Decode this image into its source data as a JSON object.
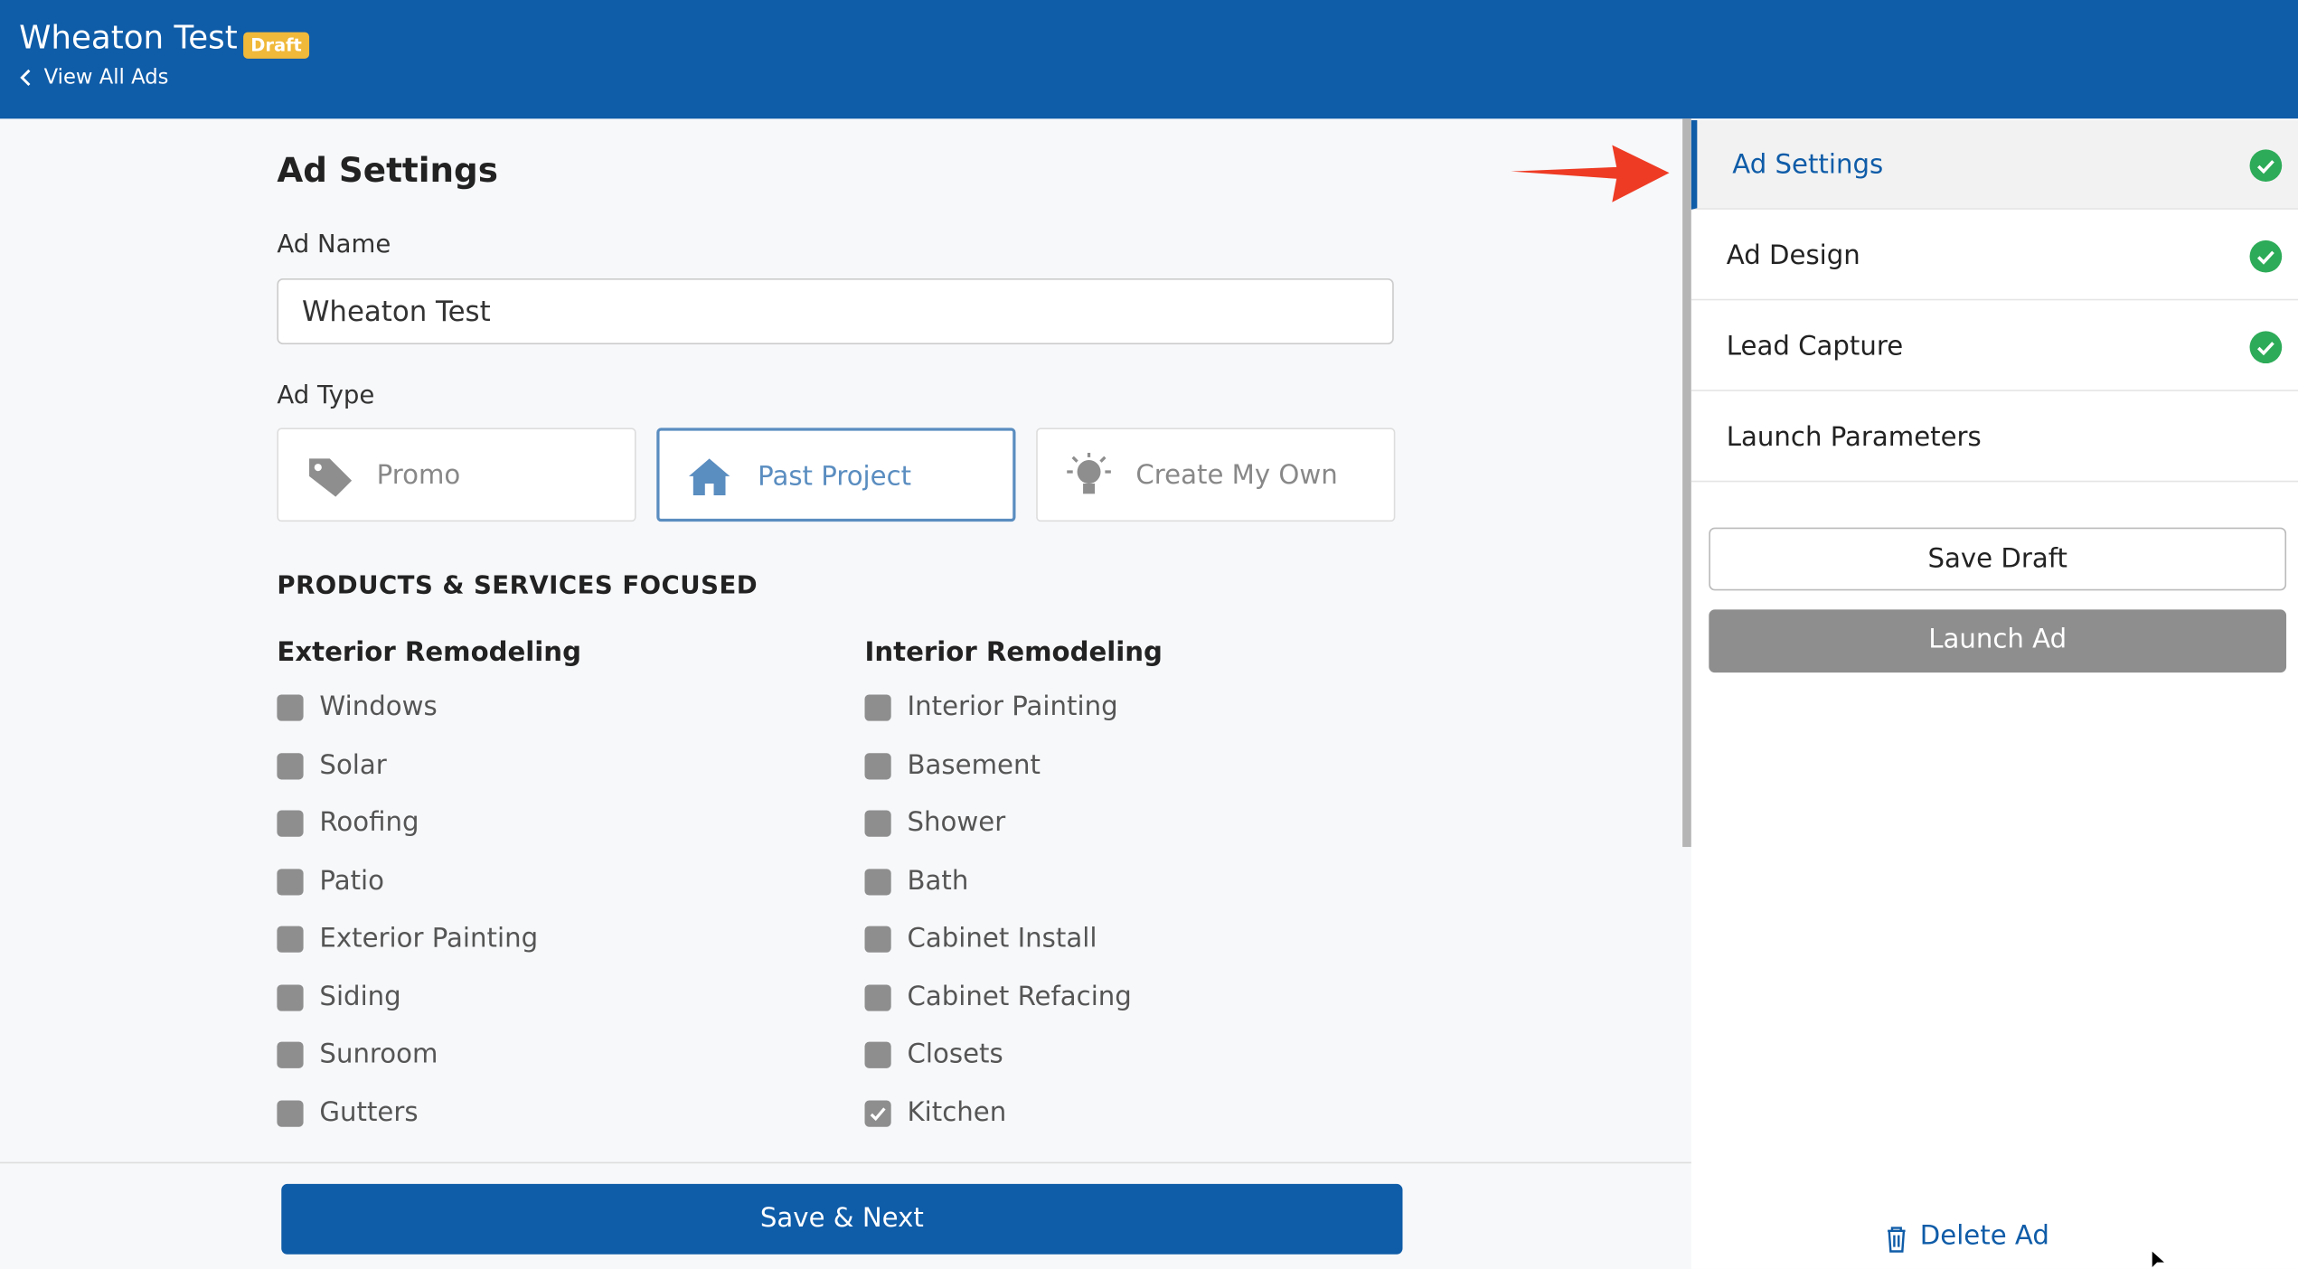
{
  "header": {
    "title": "Wheaton Test",
    "badge": "Draft",
    "back_link": "View All Ads"
  },
  "form": {
    "heading": "Ad Settings",
    "name_label": "Ad Name",
    "name_value": "Wheaton Test",
    "type_label": "Ad Type",
    "ad_types": [
      {
        "label": "Promo",
        "selected": false
      },
      {
        "label": "Past Project",
        "selected": true
      },
      {
        "label": "Create My Own",
        "selected": false
      }
    ],
    "section": "PRODUCTS & SERVICES FOCUSED",
    "columns": [
      {
        "title": "Exterior Remodeling",
        "items": [
          {
            "label": "Windows",
            "checked": false
          },
          {
            "label": "Solar",
            "checked": false
          },
          {
            "label": "Roofing",
            "checked": false
          },
          {
            "label": "Patio",
            "checked": false
          },
          {
            "label": "Exterior Painting",
            "checked": false
          },
          {
            "label": "Siding",
            "checked": false
          },
          {
            "label": "Sunroom",
            "checked": false
          },
          {
            "label": "Gutters",
            "checked": false
          }
        ]
      },
      {
        "title": "Interior Remodeling",
        "items": [
          {
            "label": "Interior Painting",
            "checked": false
          },
          {
            "label": "Basement",
            "checked": false
          },
          {
            "label": "Shower",
            "checked": false
          },
          {
            "label": "Bath",
            "checked": false
          },
          {
            "label": "Cabinet Install",
            "checked": false
          },
          {
            "label": "Cabinet Refacing",
            "checked": false
          },
          {
            "label": "Closets",
            "checked": false
          },
          {
            "label": "Kitchen",
            "checked": true
          }
        ]
      }
    ],
    "submit": "Save & Next"
  },
  "sidebar": {
    "steps": [
      {
        "label": "Ad Settings",
        "complete": true,
        "active": true
      },
      {
        "label": "Ad Design",
        "complete": true,
        "active": false
      },
      {
        "label": "Lead Capture",
        "complete": true,
        "active": false
      },
      {
        "label": "Launch Parameters",
        "complete": false,
        "active": false
      }
    ],
    "save_draft": "Save Draft",
    "launch": "Launch Ad",
    "delete": "Delete Ad"
  }
}
